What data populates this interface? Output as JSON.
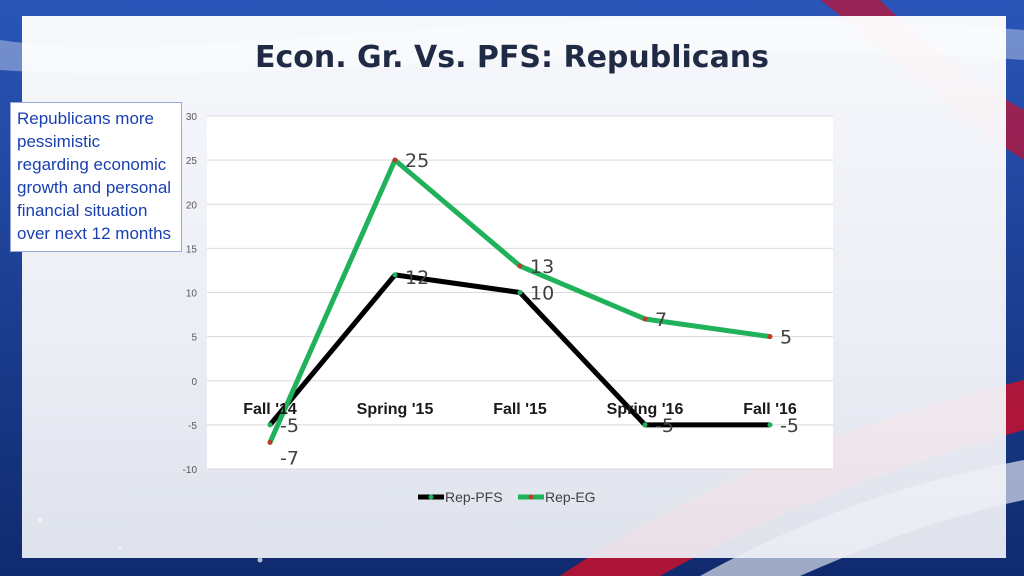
{
  "title": "Econ. Gr. Vs. PFS: Republicans",
  "note": "Republicans more pessimistic regarding economic growth and personal financial situation over next 12 months",
  "colors": {
    "rep_pfs": "#000000",
    "rep_eg": "#1fb25a",
    "eg_marker": "#c0392b",
    "grid": "#d9d9d9"
  },
  "chart_data": {
    "type": "line",
    "title": "Econ. Gr. Vs. PFS: Republicans",
    "categories": [
      "Fall '14",
      "Spring '15",
      "Fall '15",
      "Spring '16",
      "Fall '16"
    ],
    "series": [
      {
        "name": "Rep-PFS",
        "values": [
          -5,
          12,
          10,
          -5,
          -5
        ]
      },
      {
        "name": "Rep-EG",
        "values": [
          -7,
          25,
          13,
          7,
          5
        ]
      }
    ],
    "ylim": [
      -10,
      30
    ],
    "yticks": [
      -10,
      -5,
      0,
      5,
      10,
      15,
      20,
      25,
      30
    ],
    "grid": true,
    "legend": "bottom"
  }
}
